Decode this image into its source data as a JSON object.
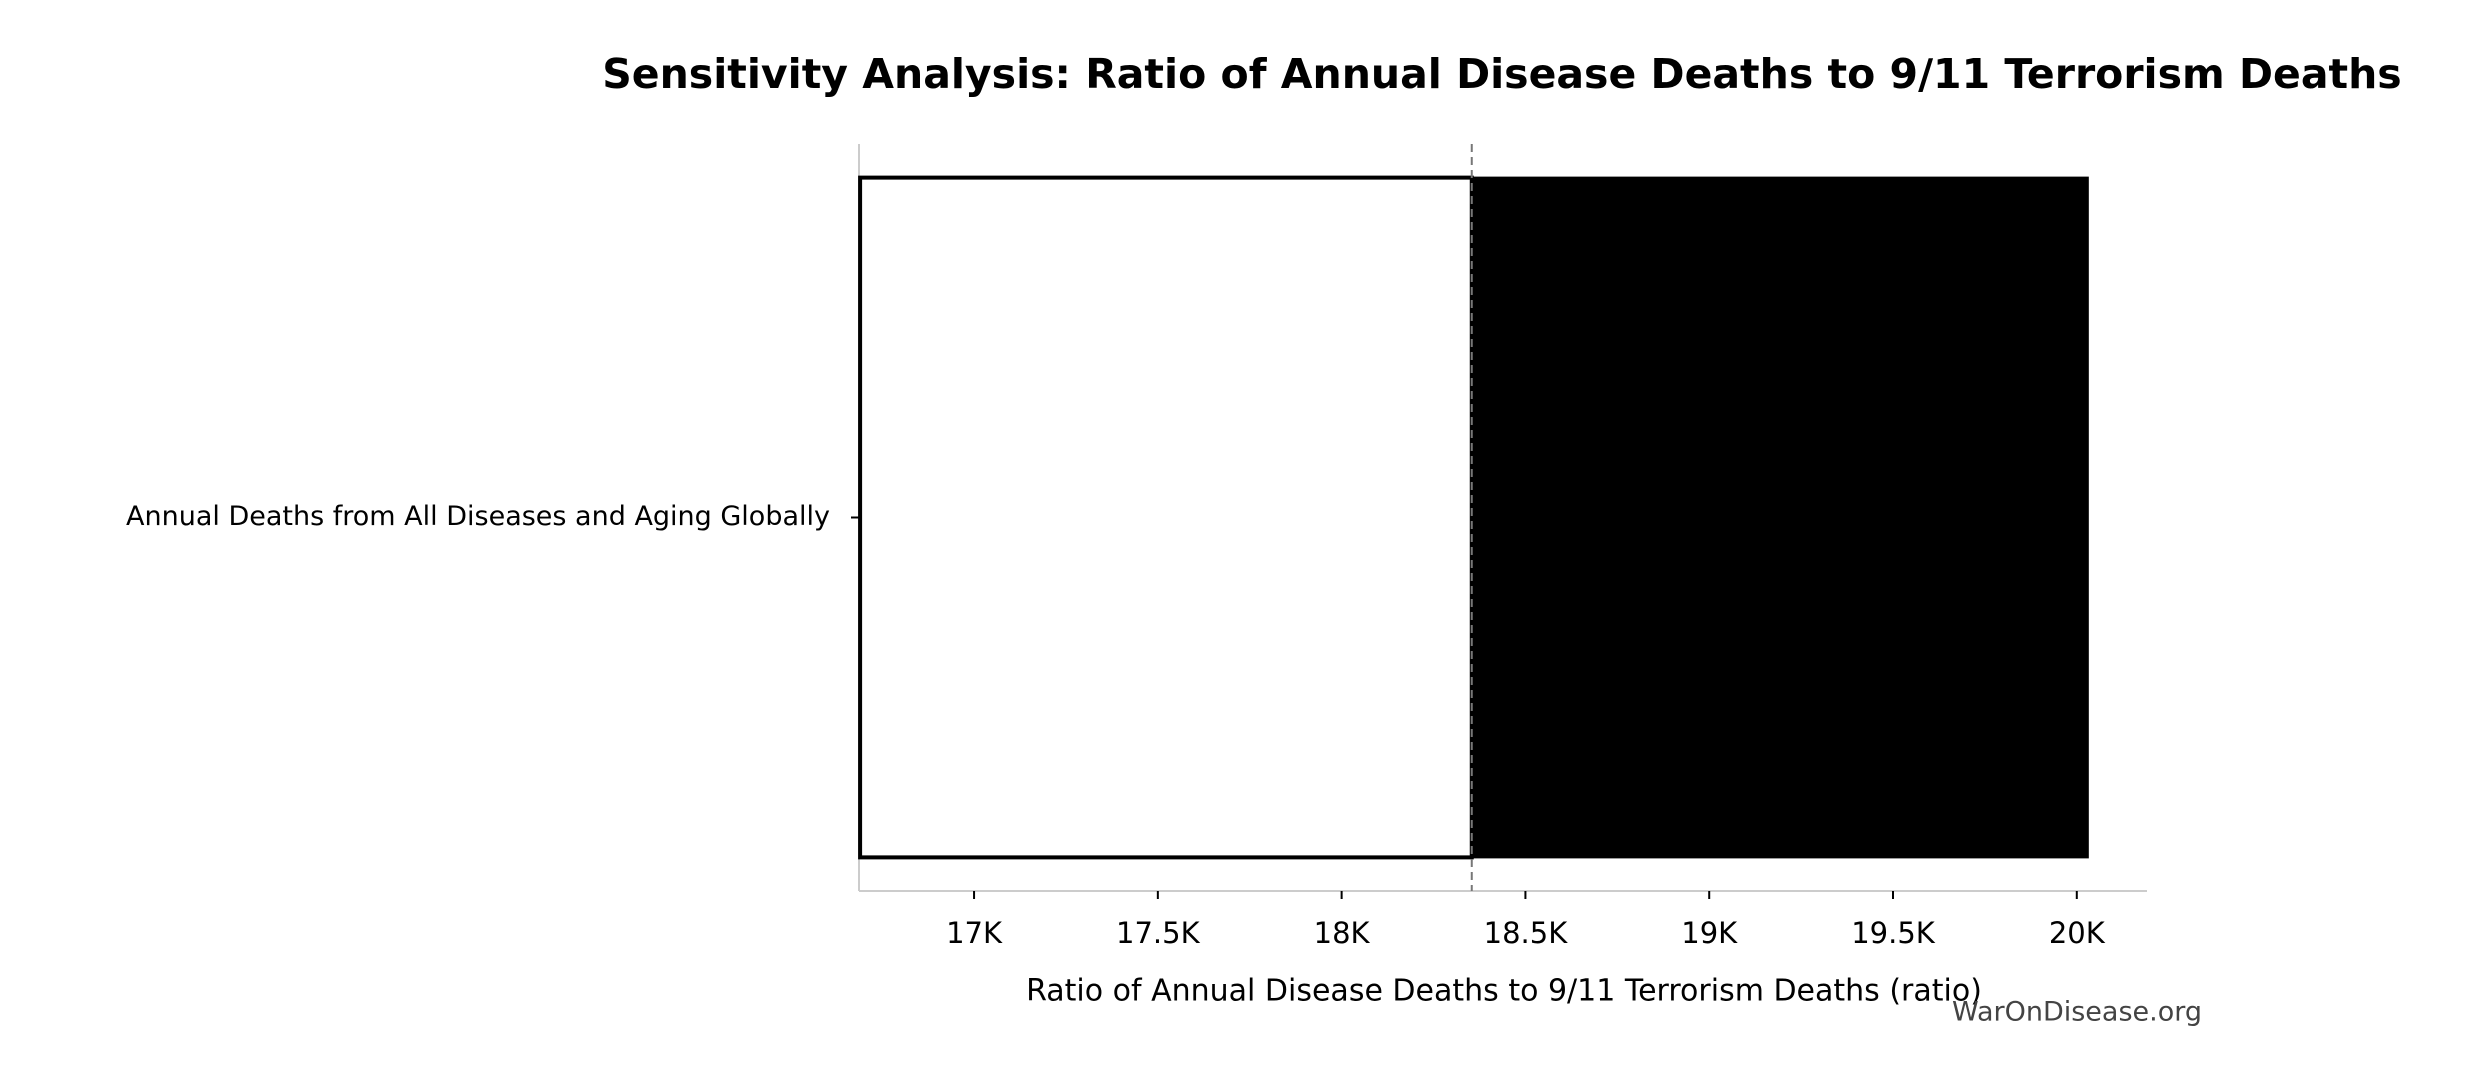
{
  "chart_data": {
    "type": "tornado",
    "title": "Sensitivity Analysis: Ratio of Annual Disease Deaths to 9/11 Terrorism Deaths",
    "xlabel": "Ratio of Annual Disease Deaths to 9/11 Terrorism Deaths (ratio)",
    "watermark": "WarOnDisease.org",
    "categories": [
      "Annual Deaths from All Diseases and Aging Globally"
    ],
    "baseline": 18354,
    "low_values": [
      16690
    ],
    "high_values": [
      20030
    ],
    "low_color": "#ffffff",
    "high_color": "#000000",
    "xlim": [
      16687,
      20191
    ],
    "xticks": [
      {
        "value": 17000,
        "label": "17K"
      },
      {
        "value": 17500,
        "label": "17.5K"
      },
      {
        "value": 18000,
        "label": "18K"
      },
      {
        "value": 18500,
        "label": "18.5K"
      },
      {
        "value": 19000,
        "label": "19K"
      },
      {
        "value": 19500,
        "label": "19.5K"
      },
      {
        "value": 20000,
        "label": "20K"
      }
    ]
  }
}
